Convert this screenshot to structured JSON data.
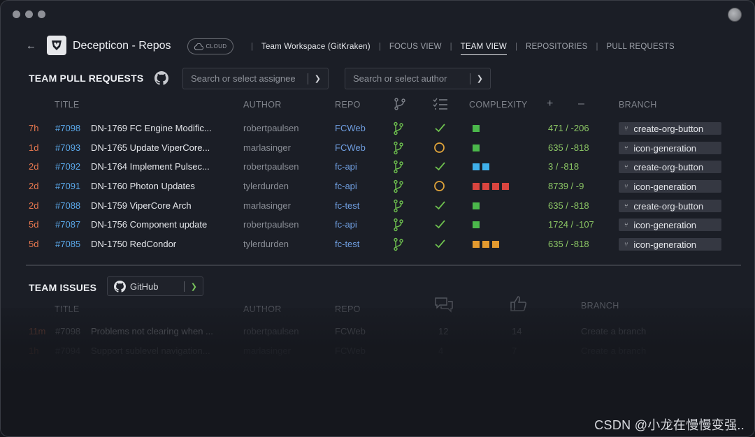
{
  "app": {
    "title": "Decepticon - Repos",
    "cloud_badge": "CLOUD"
  },
  "nav": {
    "workspace": "Team Workspace (GitKraken)",
    "items": [
      "FOCUS VIEW",
      "TEAM VIEW",
      "REPOSITORIES",
      "PULL REQUESTS"
    ],
    "active": "TEAM VIEW"
  },
  "prs": {
    "section_title": "TEAM PULL REQUESTS",
    "assignee_placeholder": "Search or select assignee",
    "author_placeholder": "Search or select author",
    "columns": {
      "title": "TITLE",
      "author": "AUTHOR",
      "repo": "REPO",
      "complexity": "COMPLEXITY",
      "plus": "+",
      "minus": "–",
      "branch": "BRANCH"
    },
    "rows": [
      {
        "age": "7h",
        "number": "#7098",
        "title": "DN-1769 FC Engine Modific...",
        "author": "robertpaulsen",
        "repo": "FCWeb",
        "checks": "passed",
        "complexity": [
          "#4bb84b"
        ],
        "stats": "471 / -206",
        "branch": "create-org-button"
      },
      {
        "age": "1d",
        "number": "#7093",
        "title": "DN-1765 Update ViperCore...",
        "author": "marlasinger",
        "repo": "FCWeb",
        "checks": "pending",
        "complexity": [
          "#4bb84b"
        ],
        "stats": "635 / -818",
        "branch": "icon-generation"
      },
      {
        "age": "2d",
        "number": "#7092",
        "title": "DN-1764 Implement Pulsec...",
        "author": "robertpaulsen",
        "repo": "fc-api",
        "checks": "passed",
        "complexity": [
          "#3fb0ea",
          "#3fb0ea"
        ],
        "stats": "3 / -818",
        "branch": "create-org-button"
      },
      {
        "age": "2d",
        "number": "#7091",
        "title": "DN-1760 Photon Updates",
        "author": "tylerdurden",
        "repo": "fc-api",
        "checks": "pending",
        "complexity": [
          "#d9453f",
          "#d9453f",
          "#d9453f",
          "#d9453f"
        ],
        "stats": "8739 / -9",
        "branch": "icon-generation"
      },
      {
        "age": "2d",
        "number": "#7088",
        "title": "DN-1759 ViperCore Arch",
        "author": "marlasinger",
        "repo": "fc-test",
        "checks": "passed",
        "complexity": [
          "#4bb84b"
        ],
        "stats": "635 / -818",
        "branch": "create-org-button"
      },
      {
        "age": "5d",
        "number": "#7087",
        "title": "DN-1756 Component update",
        "author": "robertpaulsen",
        "repo": "fc-api",
        "checks": "passed",
        "complexity": [
          "#4bb84b"
        ],
        "stats": "1724 / -107",
        "branch": "icon-generation"
      },
      {
        "age": "5d",
        "number": "#7085",
        "title": "DN-1750 RedCondor",
        "author": "tylerdurden",
        "repo": "fc-test",
        "checks": "passed",
        "complexity": [
          "#e39a2f",
          "#e39a2f",
          "#e39a2f"
        ],
        "stats": "635 / -818",
        "branch": "icon-generation"
      }
    ]
  },
  "issues": {
    "section_title": "TEAM ISSUES",
    "provider": "GitHub",
    "columns": {
      "title": "TITLE",
      "author": "AUTHOR",
      "repo": "REPO",
      "branch": "BRANCH"
    },
    "rows": [
      {
        "age": "11m",
        "number": "#7098",
        "title": "Problems not clearing when ...",
        "author": "robertpaulsen",
        "repo": "FCWeb",
        "comments": "12",
        "likes": "14",
        "branch": "Create a branch"
      },
      {
        "age": "1h",
        "number": "#7094",
        "title": "Support sublevel navigation...",
        "author": "marlasinger",
        "repo": "FCWeb",
        "comments": "4",
        "likes": "7",
        "branch": "Create a branch"
      }
    ]
  },
  "colors": {
    "age": "#e8784f",
    "link": "#5aa7e8",
    "stats": "#8cc765",
    "check": "#6fc24f",
    "pending": "#e0a43a"
  },
  "watermark": "CSDN @小龙在慢慢变强.."
}
